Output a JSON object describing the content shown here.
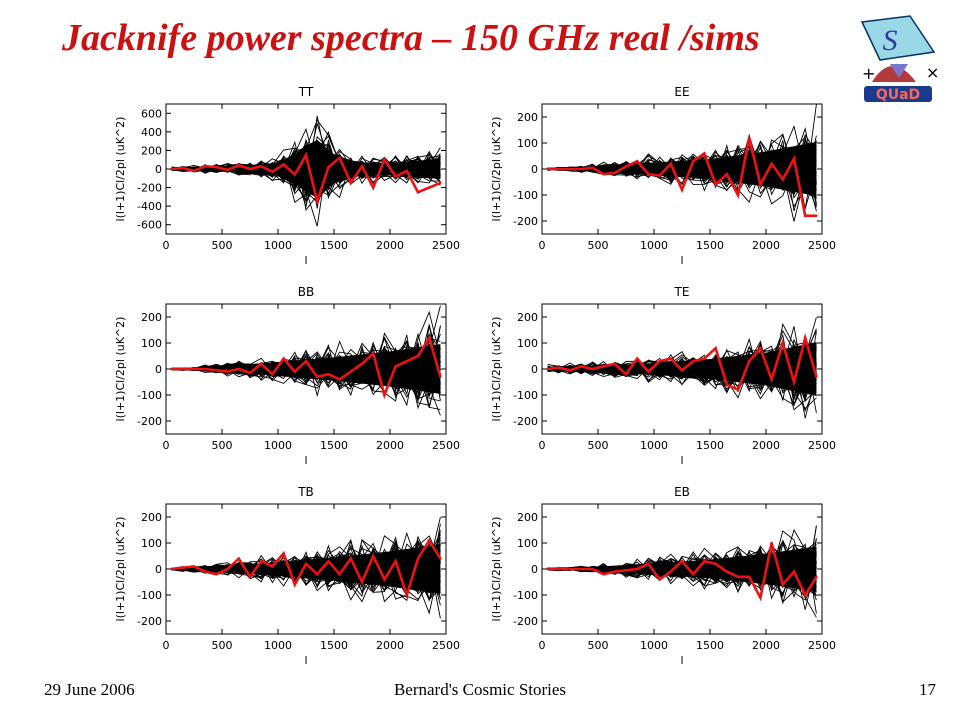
{
  "slide": {
    "title": "Jacknife power spectra – 150 GHz real /sims",
    "footer_date": "29 June 2006",
    "footer_center": "Bernard's Cosmic Stories",
    "page_number": "17",
    "logo_text": "QUaD",
    "logo_letter": "S",
    "logo_plus": "+",
    "logo_times": "×"
  },
  "colors": {
    "title": "#cc1111",
    "real": "#ee1111",
    "sims": "#000000"
  },
  "chart_data": [
    {
      "type": "line",
      "title": "TT",
      "xlabel": "l",
      "ylabel": "l(l+1)Cl/2pl (uK^2)",
      "xlim": [
        0,
        2500
      ],
      "ylim": [
        -700,
        700
      ],
      "xticks": [
        0,
        500,
        1000,
        1500,
        2000,
        2500
      ],
      "yticks": [
        -600,
        -400,
        -200,
        0,
        200,
        400,
        600
      ],
      "sims_amplitude": [
        [
          0,
          20
        ],
        [
          500,
          60
        ],
        [
          1000,
          140
        ],
        [
          1200,
          450
        ],
        [
          1350,
          700
        ],
        [
          1500,
          350
        ],
        [
          1700,
          160
        ],
        [
          2000,
          150
        ],
        [
          2500,
          250
        ]
      ],
      "series": [
        {
          "name": "",
          "x": [
            50,
            150,
            250,
            350,
            450,
            550,
            650,
            750,
            850,
            950,
            1050,
            1150,
            1250,
            1350,
            1450,
            1550,
            1650,
            1750,
            1850,
            1950,
            2050,
            2150,
            2250,
            2350,
            2450
          ],
          "values": [
            0,
            10,
            -20,
            30,
            20,
            -10,
            40,
            0,
            30,
            -30,
            50,
            -60,
            150,
            -350,
            20,
            120,
            -150,
            30,
            -200,
            100,
            -80,
            -20,
            -250,
            -200,
            -150
          ]
        }
      ]
    },
    {
      "type": "line",
      "title": "EE",
      "xlabel": "l",
      "ylabel": "l(l+1)Cl/2pl (uK^2)",
      "xlim": [
        0,
        2500
      ],
      "ylim": [
        -250,
        250
      ],
      "xticks": [
        0,
        500,
        1000,
        1500,
        2000,
        2500
      ],
      "yticks": [
        -200,
        -100,
        0,
        100,
        200
      ],
      "sims_amplitude": [
        [
          0,
          5
        ],
        [
          250,
          10
        ],
        [
          500,
          25
        ],
        [
          1000,
          55
        ],
        [
          1500,
          85
        ],
        [
          2000,
          150
        ],
        [
          2500,
          240
        ]
      ],
      "series": [
        {
          "name": "",
          "x": [
            50,
            150,
            250,
            350,
            450,
            550,
            650,
            750,
            850,
            950,
            1050,
            1150,
            1250,
            1350,
            1450,
            1550,
            1650,
            1750,
            1850,
            1950,
            2050,
            2150,
            2250,
            2350,
            2450
          ],
          "values": [
            0,
            0,
            0,
            0,
            5,
            -20,
            -15,
            10,
            30,
            -20,
            -25,
            20,
            -80,
            30,
            60,
            -60,
            -20,
            -100,
            120,
            -60,
            20,
            -40,
            40,
            -180,
            -180
          ]
        }
      ]
    },
    {
      "type": "line",
      "title": "BB",
      "xlabel": "l",
      "ylabel": "l(l+1)Cl/2pl (uK^2)",
      "xlim": [
        0,
        2500
      ],
      "ylim": [
        -250,
        250
      ],
      "xticks": [
        0,
        500,
        1000,
        1500,
        2000,
        2500
      ],
      "yticks": [
        -200,
        -100,
        0,
        100,
        200
      ],
      "sims_amplitude": [
        [
          0,
          5
        ],
        [
          250,
          8
        ],
        [
          500,
          25
        ],
        [
          1000,
          60
        ],
        [
          1500,
          100
        ],
        [
          2000,
          150
        ],
        [
          2500,
          220
        ]
      ],
      "series": [
        {
          "name": "",
          "x": [
            50,
            150,
            250,
            350,
            450,
            550,
            650,
            750,
            850,
            950,
            1050,
            1150,
            1250,
            1350,
            1450,
            1550,
            1650,
            1750,
            1850,
            1950,
            2050,
            2150,
            2250,
            2350,
            2450
          ],
          "values": [
            0,
            0,
            0,
            0,
            -5,
            -10,
            0,
            -15,
            20,
            -20,
            40,
            -10,
            30,
            -30,
            -20,
            -40,
            -10,
            20,
            60,
            -100,
            10,
            30,
            50,
            120,
            -30
          ]
        }
      ]
    },
    {
      "type": "line",
      "title": "TE",
      "xlabel": "l",
      "ylabel": "l(l+1)Cl/2pl (uK^2)",
      "xlim": [
        0,
        2500
      ],
      "ylim": [
        -250,
        250
      ],
      "xticks": [
        0,
        500,
        1000,
        1500,
        2000,
        2500
      ],
      "yticks": [
        -200,
        -100,
        0,
        100,
        200
      ],
      "sims_amplitude": [
        [
          0,
          15
        ],
        [
          500,
          30
        ],
        [
          1000,
          50
        ],
        [
          1500,
          85
        ],
        [
          2000,
          140
        ],
        [
          2500,
          240
        ]
      ],
      "series": [
        {
          "name": "",
          "x": [
            50,
            150,
            250,
            350,
            450,
            550,
            650,
            750,
            850,
            950,
            1050,
            1150,
            1250,
            1350,
            1450,
            1550,
            1650,
            1750,
            1850,
            1950,
            2050,
            2150,
            2250,
            2350,
            2450
          ],
          "values": [
            0,
            5,
            -5,
            10,
            0,
            10,
            20,
            -20,
            40,
            -10,
            30,
            40,
            -5,
            30,
            40,
            80,
            -60,
            -80,
            30,
            80,
            -40,
            100,
            -50,
            120,
            -30
          ]
        }
      ]
    },
    {
      "type": "line",
      "title": "TB",
      "xlabel": "l",
      "ylabel": "l(l+1)Cl/2pl (uK^2)",
      "xlim": [
        0,
        2500
      ],
      "ylim": [
        -250,
        250
      ],
      "xticks": [
        0,
        500,
        1000,
        1500,
        2000,
        2500
      ],
      "yticks": [
        -200,
        -100,
        0,
        100,
        200
      ],
      "sims_amplitude": [
        [
          0,
          5
        ],
        [
          500,
          25
        ],
        [
          1000,
          60
        ],
        [
          1500,
          100
        ],
        [
          2000,
          150
        ],
        [
          2500,
          220
        ]
      ],
      "series": [
        {
          "name": "",
          "x": [
            50,
            150,
            250,
            350,
            450,
            550,
            650,
            750,
            850,
            950,
            1050,
            1150,
            1250,
            1350,
            1450,
            1550,
            1650,
            1750,
            1850,
            1950,
            2050,
            2150,
            2250,
            2350,
            2450
          ],
          "values": [
            0,
            5,
            10,
            -10,
            -20,
            0,
            40,
            -30,
            30,
            10,
            60,
            -60,
            20,
            -20,
            30,
            -20,
            40,
            -50,
            50,
            -40,
            30,
            -100,
            40,
            110,
            40
          ]
        }
      ]
    },
    {
      "type": "line",
      "title": "EB",
      "xlabel": "l",
      "ylabel": "l(l+1)Cl/2pl (uK^2)",
      "xlim": [
        0,
        2500
      ],
      "ylim": [
        -250,
        250
      ],
      "xticks": [
        0,
        500,
        1000,
        1500,
        2000,
        2500
      ],
      "yticks": [
        -200,
        -100,
        0,
        100,
        200
      ],
      "sims_amplitude": [
        [
          0,
          5
        ],
        [
          250,
          8
        ],
        [
          500,
          20
        ],
        [
          1000,
          50
        ],
        [
          1500,
          80
        ],
        [
          2000,
          130
        ],
        [
          2500,
          200
        ]
      ],
      "series": [
        {
          "name": "",
          "x": [
            50,
            150,
            250,
            350,
            450,
            550,
            650,
            750,
            850,
            950,
            1050,
            1150,
            1250,
            1350,
            1450,
            1550,
            1650,
            1750,
            1850,
            1950,
            2050,
            2150,
            2250,
            2350,
            2450
          ],
          "values": [
            0,
            0,
            0,
            0,
            0,
            -20,
            -10,
            -5,
            0,
            20,
            -40,
            -10,
            30,
            -20,
            30,
            20,
            -10,
            -30,
            -30,
            -110,
            100,
            -60,
            -10,
            -100,
            -30
          ]
        }
      ]
    }
  ]
}
